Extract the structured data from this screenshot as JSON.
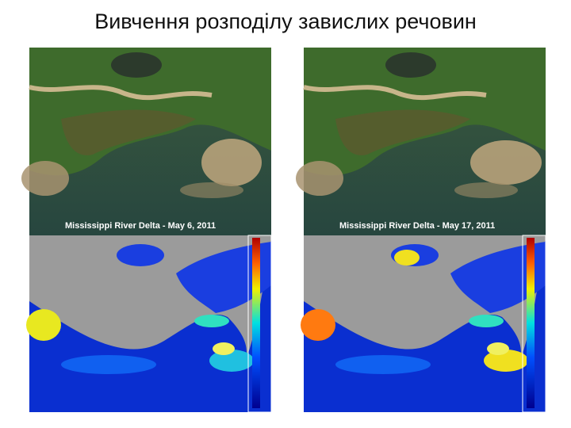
{
  "header": {
    "title": "Вивчення розподілу завислих речовин"
  },
  "panels": [
    {
      "caption": "Mississippi River Delta - May 6, 2011"
    },
    {
      "caption": "Mississippi River Delta - May 17, 2011"
    }
  ]
}
